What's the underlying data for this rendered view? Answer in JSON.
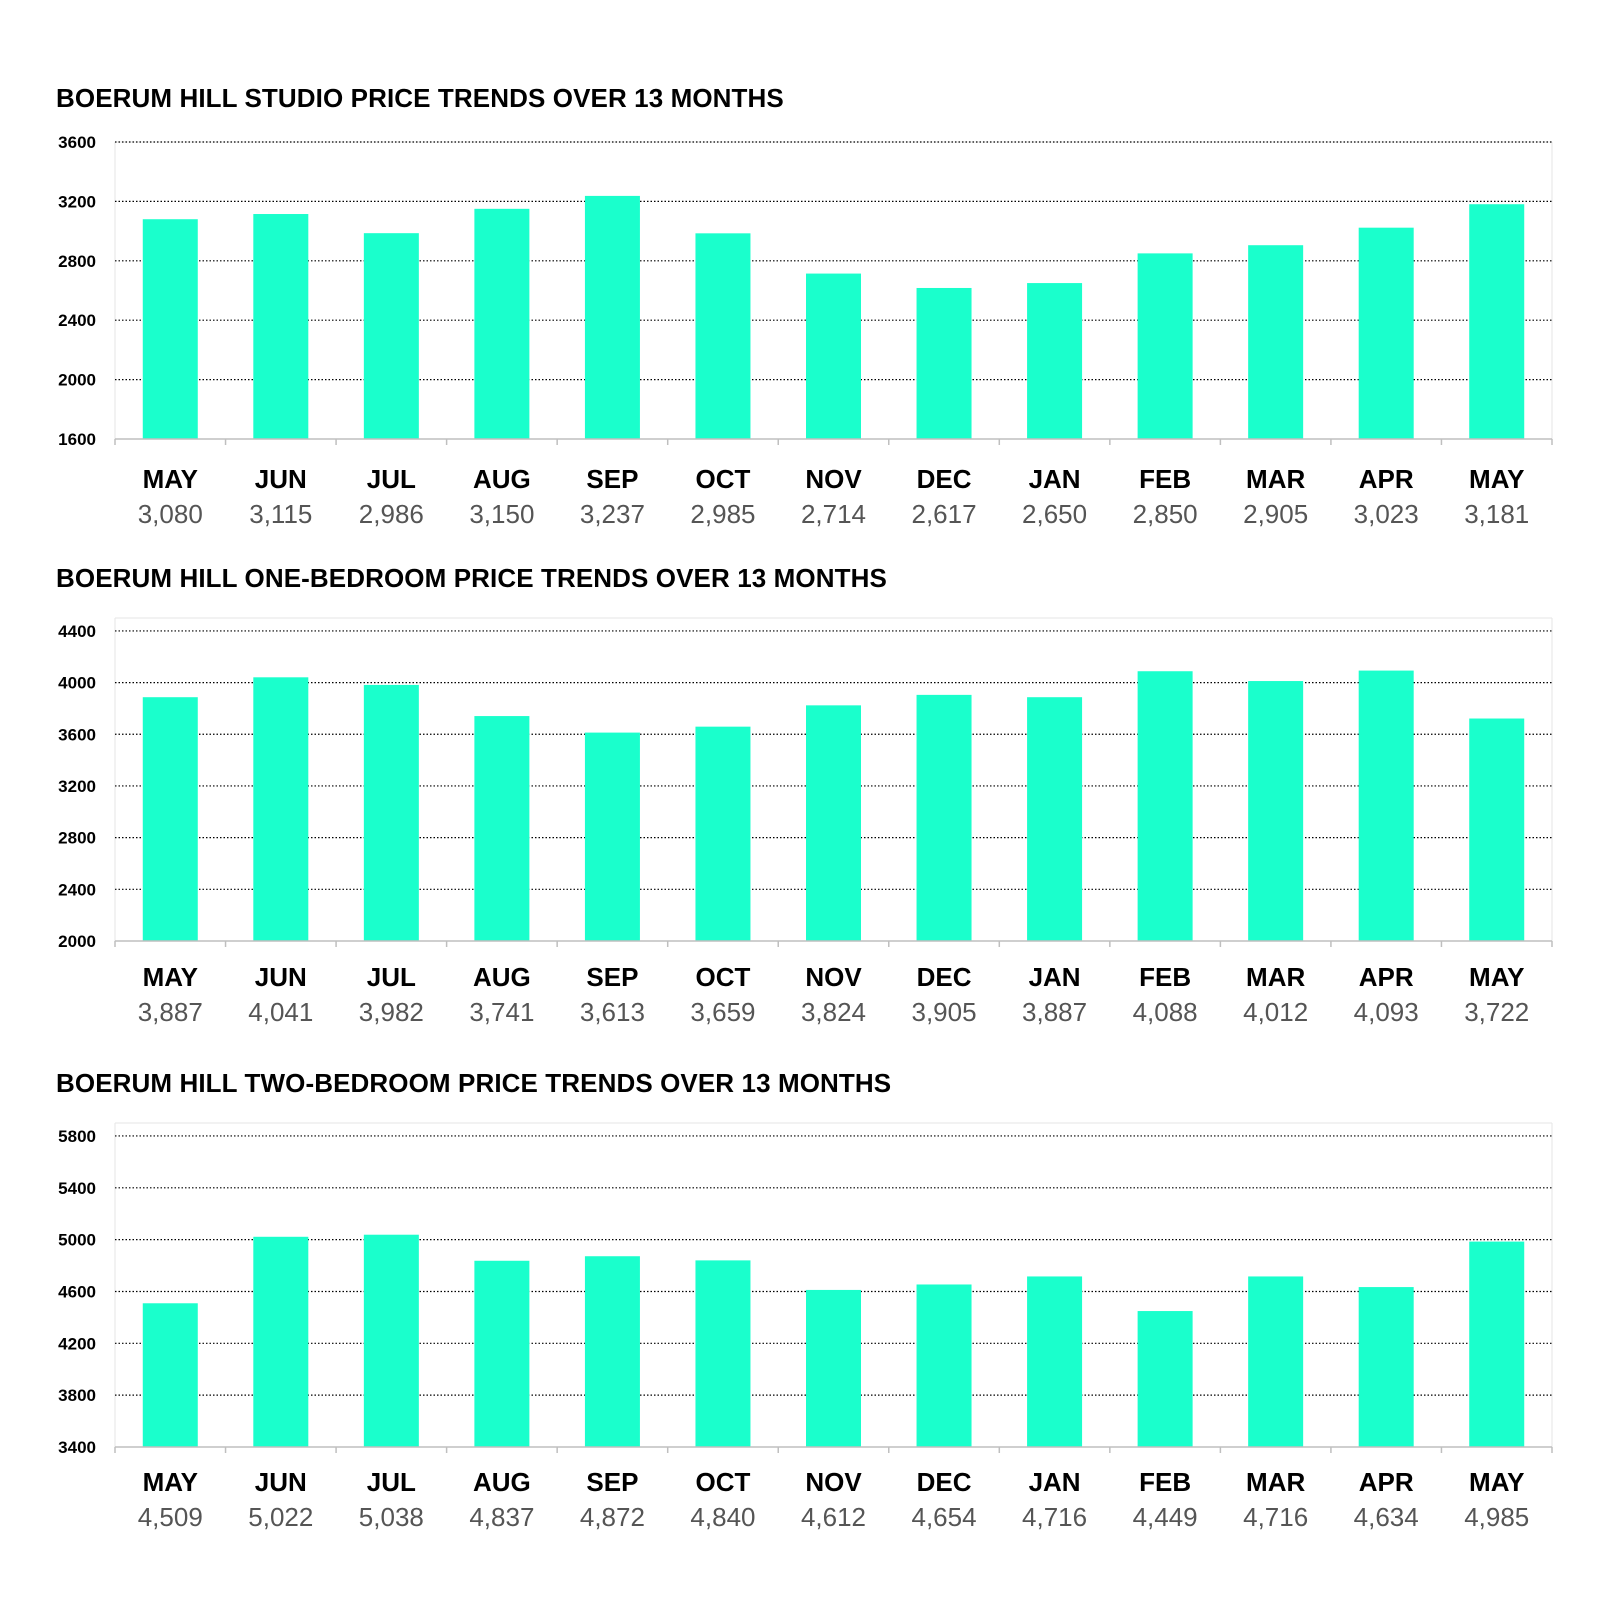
{
  "style": {
    "bar_color": "#1AFFCC",
    "grid_color": "#000000",
    "axis_color": "#BFBFBF",
    "value_label_color": "#555555"
  },
  "chart_data": [
    {
      "type": "bar",
      "title": "BOERUM HILL STUDIO PRICE TRENDS OVER 13 MONTHS",
      "categories": [
        "MAY",
        "JUN",
        "JUL",
        "AUG",
        "SEP",
        "OCT",
        "NOV",
        "DEC",
        "JAN",
        "FEB",
        "MAR",
        "APR",
        "MAY"
      ],
      "values": [
        3080,
        3115,
        2986,
        3150,
        3237,
        2985,
        2714,
        2617,
        2650,
        2850,
        2905,
        3023,
        3181
      ],
      "value_labels": [
        "3,080",
        "3,115",
        "2,986",
        "3,150",
        "3,237",
        "2,985",
        "2,714",
        "2,617",
        "2,650",
        "2,850",
        "2,905",
        "3,023",
        "3,181"
      ],
      "yticks": [
        1600,
        2000,
        2400,
        2800,
        3200,
        3600
      ],
      "ylim": [
        1600,
        3600
      ],
      "grid": true,
      "legend": "none",
      "xlabel": "",
      "ylabel": ""
    },
    {
      "type": "bar",
      "title": "BOERUM HILL ONE-BEDROOM PRICE TRENDS OVER 13 MONTHS",
      "categories": [
        "MAY",
        "JUN",
        "JUL",
        "AUG",
        "SEP",
        "OCT",
        "NOV",
        "DEC",
        "JAN",
        "FEB",
        "MAR",
        "APR",
        "MAY"
      ],
      "values": [
        3887,
        4041,
        3982,
        3741,
        3613,
        3659,
        3824,
        3905,
        3887,
        4088,
        4012,
        4093,
        3722
      ],
      "value_labels": [
        "3,887",
        "4,041",
        "3,982",
        "3,741",
        "3,613",
        "3,659",
        "3,824",
        "3,905",
        "3,887",
        "4,088",
        "4,012",
        "4,093",
        "3,722"
      ],
      "yticks": [
        2000,
        2400,
        2800,
        3200,
        3600,
        4000,
        4400
      ],
      "ylim": [
        2000,
        4500
      ],
      "grid": true,
      "legend": "none",
      "xlabel": "",
      "ylabel": ""
    },
    {
      "type": "bar",
      "title": "BOERUM HILL TWO-BEDROOM PRICE TRENDS OVER 13 MONTHS",
      "categories": [
        "MAY",
        "JUN",
        "JUL",
        "AUG",
        "SEP",
        "OCT",
        "NOV",
        "DEC",
        "JAN",
        "FEB",
        "MAR",
        "APR",
        "MAY"
      ],
      "values": [
        4509,
        5022,
        5038,
        4837,
        4872,
        4840,
        4612,
        4654,
        4716,
        4449,
        4716,
        4634,
        4985
      ],
      "value_labels": [
        "4,509",
        "5,022",
        "5,038",
        "4,837",
        "4,872",
        "4,840",
        "4,612",
        "4,654",
        "4,716",
        "4,449",
        "4,716",
        "4,634",
        "4,985"
      ],
      "yticks": [
        3400,
        3800,
        4200,
        4600,
        5000,
        5400,
        5800
      ],
      "ylim": [
        3400,
        5900
      ],
      "grid": true,
      "legend": "none",
      "xlabel": "",
      "ylabel": ""
    }
  ]
}
